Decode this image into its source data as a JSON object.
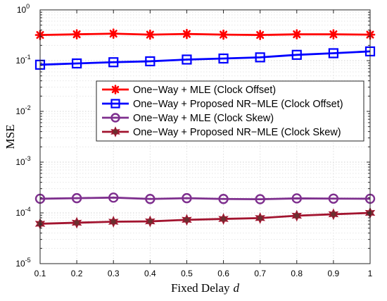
{
  "chart_data": {
    "type": "line",
    "title": "",
    "xlabel": "Fixed Delay",
    "xlabel_var": "d",
    "ylabel": "MSE",
    "xlim": [
      0.1,
      1
    ],
    "ylim": [
      1e-05,
      1
    ],
    "y_scale": "log",
    "grid": true,
    "legend_position": "upper-center",
    "x": [
      0.1,
      0.2,
      0.3,
      0.4,
      0.5,
      0.6,
      0.7,
      0.8,
      0.9,
      1.0
    ],
    "x_ticks": [
      "0.1",
      "0.2",
      "0.3",
      "0.4",
      "0.5",
      "0.6",
      "0.7",
      "0.8",
      "0.9",
      "1"
    ],
    "y_ticks": [
      {
        "base": "10",
        "exp": "0",
        "value": 1
      },
      {
        "base": "10",
        "exp": "-1",
        "value": 0.1
      },
      {
        "base": "10",
        "exp": "-2",
        "value": 0.01
      },
      {
        "base": "10",
        "exp": "-3",
        "value": 0.001
      },
      {
        "base": "10",
        "exp": "-4",
        "value": 0.0001
      },
      {
        "base": "10",
        "exp": "-5",
        "value": 1e-05
      }
    ],
    "series": [
      {
        "name": "One−Way + MLE (Clock Offset)",
        "color": "#ff0000",
        "marker": "asterisk",
        "values": [
          0.32,
          0.33,
          0.34,
          0.325,
          0.335,
          0.325,
          0.32,
          0.33,
          0.33,
          0.325
        ]
      },
      {
        "name": "One−Way + Proposed NR−MLE (Clock Offset)",
        "color": "#0000ff",
        "marker": "square",
        "values": [
          0.083,
          0.088,
          0.093,
          0.097,
          0.105,
          0.11,
          0.116,
          0.13,
          0.14,
          0.152
        ]
      },
      {
        "name": "One−Way + MLE (Clock Skew)",
        "color": "#7e2f8e",
        "marker": "circle",
        "values": [
          0.00019,
          0.000195,
          0.0002,
          0.000188,
          0.000195,
          0.000188,
          0.000186,
          0.000193,
          0.000191,
          0.00019
        ]
      },
      {
        "name": "One−Way + Proposed NR−MLE (Clock Skew)",
        "color": "#a2142f",
        "marker": "hexagram",
        "values": [
          6.1e-05,
          6.4e-05,
          6.7e-05,
          6.8e-05,
          7.3e-05,
          7.6e-05,
          7.9e-05,
          8.8e-05,
          9.4e-05,
          0.0001
        ]
      }
    ]
  }
}
